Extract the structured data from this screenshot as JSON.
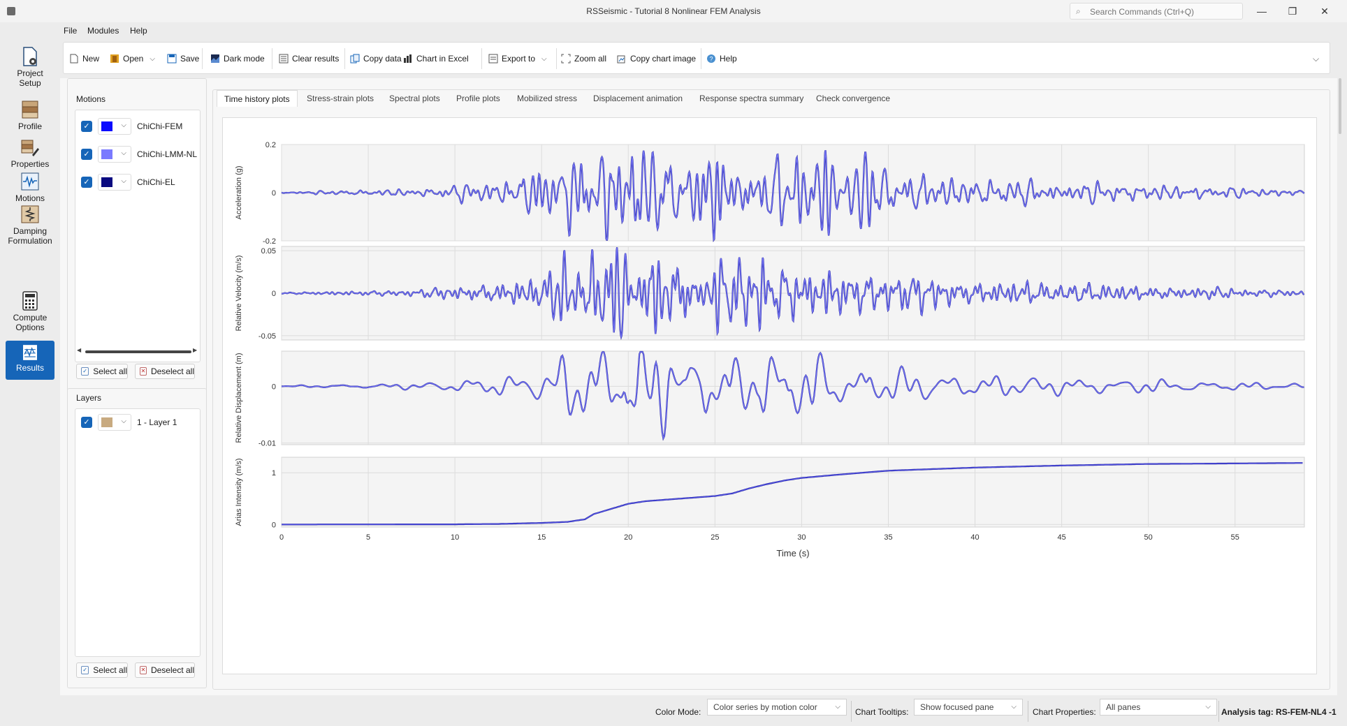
{
  "window": {
    "title": "RSSeismic - Tutorial 8 Nonlinear FEM Analysis",
    "search_placeholder": "Search Commands (Ctrl+Q)",
    "minimize": "—",
    "maximize": "❐",
    "close": "✕"
  },
  "menu": [
    "File",
    "Modules",
    "Help"
  ],
  "toolbar": {
    "new": "New",
    "open": "Open",
    "save": "Save",
    "dark_mode": "Dark mode",
    "clear_results": "Clear results",
    "copy_data": "Copy data",
    "chart_in_excel": "Chart in Excel",
    "export_to": "Export to",
    "zoom_all": "Zoom all",
    "copy_chart_image": "Copy chart image",
    "help": "Help"
  },
  "leftnav": [
    {
      "label": "Project\nSetup",
      "icon": "project-setup-icon"
    },
    {
      "label": "Profile",
      "icon": "profile-icon"
    },
    {
      "label": "Properties",
      "icon": "properties-icon"
    },
    {
      "label": "Motions",
      "icon": "motions-icon"
    },
    {
      "label": "Damping\nFormulation",
      "icon": "damping-icon"
    },
    {
      "label": "Compute\nOptions",
      "icon": "compute-icon"
    },
    {
      "label": "Results",
      "icon": "results-icon",
      "active": true
    }
  ],
  "motions_panel": {
    "title": "Motions",
    "items": [
      {
        "label": "ChiChi-FEM",
        "color": "#0a0aff"
      },
      {
        "label": "ChiChi-LMM-NL",
        "color": "#7a7aff"
      },
      {
        "label": "ChiChi-EL",
        "color": "#0a0a80"
      }
    ],
    "select_all": "Select all",
    "deselect_all": "Deselect all"
  },
  "layers_panel": {
    "title": "Layers",
    "items": [
      {
        "label": "1 - Layer 1",
        "color": "#c8aa80"
      }
    ],
    "select_all": "Select all",
    "deselect_all": "Deselect all"
  },
  "tabs": [
    "Time history plots",
    "Stress-strain plots",
    "Spectral plots",
    "Profile plots",
    "Mobilized stress",
    "Displacement animation",
    "Response spectra summary",
    "Check convergence"
  ],
  "status": {
    "color_mode_label": "Color Mode:",
    "color_mode_value": "Color series by motion color",
    "tooltips_label": "Chart Tooltips:",
    "tooltips_value": "Show focused pane",
    "properties_label": "Chart Properties:",
    "properties_value": "All panes",
    "analysis_tag": "Analysis tag: RS-FEM-NL4 -1"
  },
  "chart_data": [
    {
      "type": "line",
      "ylabel": "Acceleration (g)",
      "yticks": [
        "0.2",
        "0",
        "-0.2"
      ],
      "ytick_values": [
        0.2,
        0,
        -0.2
      ],
      "ylim": [
        -0.2,
        0.2
      ],
      "xlim": [
        0,
        59
      ],
      "series_color": "#6f6ff0",
      "env": 0.2,
      "seed": 11,
      "kind": "osc"
    },
    {
      "type": "line",
      "ylabel": "Relative Velocity (m/s)",
      "yticks": [
        "0.05",
        "0",
        "-0.05"
      ],
      "ytick_values": [
        0.05,
        0,
        -0.05
      ],
      "ylim": [
        -0.055,
        0.055
      ],
      "xlim": [
        0,
        59
      ],
      "series_color": "#6f6ff0",
      "env": 0.05,
      "seed": 23,
      "kind": "osc"
    },
    {
      "type": "line",
      "ylabel": "Relative Displacement (m)",
      "yticks": [
        "0",
        "-0.01"
      ],
      "ytick_values": [
        0,
        -0.01
      ],
      "ylim": [
        -0.0103,
        0.0062
      ],
      "xlim": [
        0,
        59
      ],
      "series_color": "#6f6ff0",
      "env": 0.006,
      "seed": 37,
      "kind": "osc_slow"
    },
    {
      "type": "line",
      "ylabel": "Arias Intensity (m/s)",
      "yticks": [
        "1",
        "0"
      ],
      "ytick_values": [
        1,
        0
      ],
      "ylim": [
        -0.05,
        1.3
      ],
      "xlim": [
        0,
        59
      ],
      "series_color": "#5050e0",
      "kind": "arias",
      "x": [
        0,
        10,
        12.5,
        15,
        16.5,
        17.5,
        18,
        19,
        20,
        21,
        23,
        25,
        26,
        27,
        28,
        29,
        30,
        32,
        35,
        40,
        45,
        50,
        55,
        59
      ],
      "y": [
        0,
        0.003,
        0.01,
        0.03,
        0.05,
        0.1,
        0.2,
        0.3,
        0.4,
        0.45,
        0.5,
        0.55,
        0.6,
        0.7,
        0.78,
        0.85,
        0.9,
        0.96,
        1.04,
        1.1,
        1.14,
        1.17,
        1.18,
        1.19
      ]
    }
  ],
  "xaxis": {
    "label": "Time (s)",
    "ticks": [
      "0",
      "5",
      "10",
      "15",
      "20",
      "25",
      "30",
      "35",
      "40",
      "45",
      "50",
      "55"
    ],
    "tick_values": [
      0,
      5,
      10,
      15,
      20,
      25,
      30,
      35,
      40,
      45,
      50,
      55
    ]
  }
}
